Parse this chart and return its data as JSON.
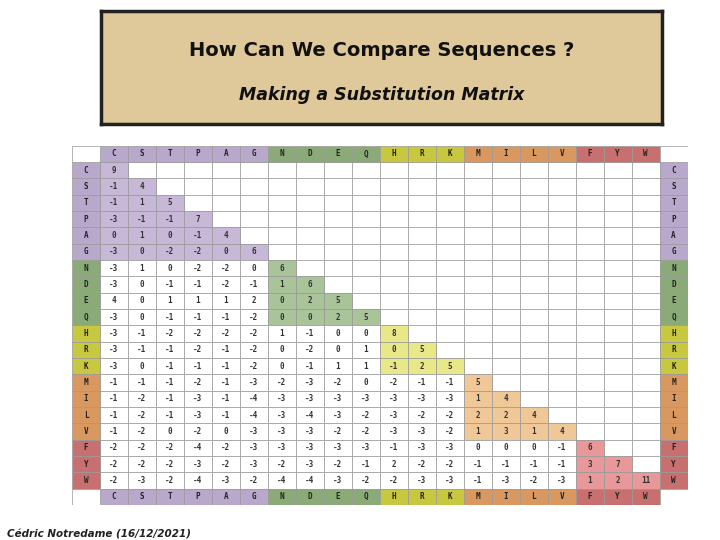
{
  "title_line1": "How Can We Compare Sequences ?",
  "title_line2": "Making a Substitution Matrix",
  "author": "Cédric Notredame (16/12/2021)",
  "amino_acids": [
    "C",
    "S",
    "T",
    "P",
    "A",
    "G",
    "N",
    "D",
    "E",
    "Q",
    "H",
    "R",
    "K",
    "M",
    "I",
    "L",
    "V",
    "F",
    "Y",
    "W"
  ],
  "matrix": [
    [
      9,
      null,
      null,
      null,
      null,
      null,
      null,
      null,
      null,
      null,
      null,
      null,
      null,
      null,
      null,
      null,
      null,
      null,
      null,
      null
    ],
    [
      -1,
      4,
      null,
      null,
      null,
      null,
      null,
      null,
      null,
      null,
      null,
      null,
      null,
      null,
      null,
      null,
      null,
      null,
      null,
      null
    ],
    [
      -1,
      1,
      5,
      null,
      null,
      null,
      null,
      null,
      null,
      null,
      null,
      null,
      null,
      null,
      null,
      null,
      null,
      null,
      null,
      null
    ],
    [
      -3,
      -1,
      -1,
      7,
      null,
      null,
      null,
      null,
      null,
      null,
      null,
      null,
      null,
      null,
      null,
      null,
      null,
      null,
      null,
      null
    ],
    [
      0,
      1,
      0,
      -1,
      4,
      null,
      null,
      null,
      null,
      null,
      null,
      null,
      null,
      null,
      null,
      null,
      null,
      null,
      null,
      null
    ],
    [
      -3,
      0,
      -2,
      -2,
      0,
      6,
      null,
      null,
      null,
      null,
      null,
      null,
      null,
      null,
      null,
      null,
      null,
      null,
      null,
      null
    ],
    [
      -3,
      1,
      0,
      -2,
      -2,
      0,
      6,
      null,
      null,
      null,
      null,
      null,
      null,
      null,
      null,
      null,
      null,
      null,
      null,
      null
    ],
    [
      -3,
      0,
      -1,
      -1,
      -2,
      -1,
      1,
      6,
      null,
      null,
      null,
      null,
      null,
      null,
      null,
      null,
      null,
      null,
      null,
      null
    ],
    [
      4,
      0,
      1,
      1,
      1,
      2,
      0,
      2,
      5,
      null,
      null,
      null,
      null,
      null,
      null,
      null,
      null,
      null,
      null,
      null
    ],
    [
      -3,
      0,
      -1,
      -1,
      -1,
      -2,
      0,
      0,
      2,
      5,
      null,
      null,
      null,
      null,
      null,
      null,
      null,
      null,
      null,
      null
    ],
    [
      -3,
      -1,
      -2,
      -2,
      -2,
      -2,
      1,
      -1,
      0,
      0,
      8,
      null,
      null,
      null,
      null,
      null,
      null,
      null,
      null,
      null
    ],
    [
      -3,
      -1,
      -1,
      -2,
      -1,
      -2,
      0,
      -2,
      0,
      1,
      0,
      5,
      null,
      null,
      null,
      null,
      null,
      null,
      null,
      null
    ],
    [
      -3,
      0,
      -1,
      -1,
      -1,
      -2,
      0,
      -1,
      1,
      1,
      -1,
      2,
      5,
      null,
      null,
      null,
      null,
      null,
      null,
      null
    ],
    [
      -1,
      -1,
      -1,
      -2,
      -1,
      -3,
      -2,
      -3,
      -2,
      0,
      -2,
      -1,
      -1,
      5,
      null,
      null,
      null,
      null,
      null,
      null
    ],
    [
      -1,
      -2,
      -1,
      -3,
      -1,
      -4,
      -3,
      -3,
      -3,
      -3,
      -3,
      -3,
      -3,
      1,
      4,
      null,
      null,
      null,
      null,
      null
    ],
    [
      -1,
      -2,
      -1,
      -3,
      -1,
      -4,
      -3,
      -4,
      -3,
      -2,
      -3,
      -2,
      -2,
      2,
      2,
      4,
      null,
      null,
      null,
      null
    ],
    [
      -1,
      -2,
      0,
      -2,
      0,
      -3,
      -3,
      -3,
      -2,
      -2,
      -3,
      -3,
      -2,
      1,
      3,
      1,
      4,
      null,
      null,
      null
    ],
    [
      -2,
      -2,
      -2,
      -4,
      -2,
      -3,
      -3,
      -3,
      -3,
      -3,
      -1,
      -3,
      -3,
      0,
      0,
      0,
      -1,
      6,
      null,
      null
    ],
    [
      -2,
      -2,
      -2,
      -3,
      -2,
      -3,
      -2,
      -3,
      -2,
      -1,
      2,
      -2,
      -2,
      -1,
      -1,
      -1,
      -1,
      3,
      7,
      null
    ],
    [
      -2,
      -3,
      -2,
      -4,
      -3,
      -2,
      -4,
      -4,
      -3,
      -2,
      -2,
      -3,
      -3,
      -1,
      -3,
      -2,
      -3,
      1,
      2,
      11
    ]
  ],
  "groups": {
    "CSTPAG": [
      0,
      1,
      2,
      3,
      4,
      5
    ],
    "NDEQ": [
      6,
      7,
      8,
      9
    ],
    "HRK": [
      10,
      11,
      12
    ],
    "MILV": [
      13,
      14,
      15,
      16
    ],
    "FYW": [
      17,
      18,
      19
    ]
  },
  "group_fill": {
    "CSTPAG": "#c8b8d8",
    "NDEQ": "#aac49a",
    "HRK": "#e8e888",
    "MILV": "#f0c898",
    "FYW": "#e89898"
  },
  "group_header": {
    "CSTPAG": "#b8a8cc",
    "NDEQ": "#8aaa78",
    "HRK": "#c8c840",
    "MILV": "#d89860",
    "FYW": "#c87070"
  },
  "bg_color": "#ffffff",
  "title_bg": "#dfc99a",
  "title_border": "#222222",
  "grid_color": "#999999",
  "cell_text_color": "#333333"
}
